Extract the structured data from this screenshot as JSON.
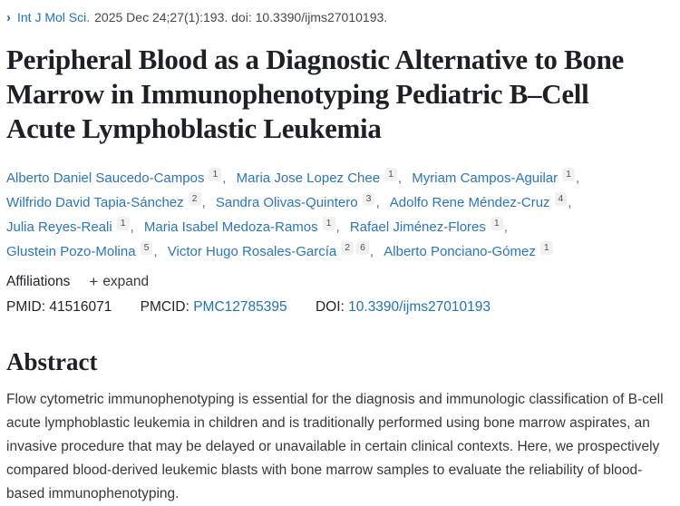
{
  "colors": {
    "link_blue": "#2173b6",
    "title_dark": "#1d2025",
    "sup_chip_bg": "#f1f1f1"
  },
  "citation": {
    "chevron_icon": "›",
    "journal": "Int J Mol Sci.",
    "details": "2025 Dec 24;27(1):193. doi: 10.3390/ijms27010193."
  },
  "title": "Peripheral Blood as a Diagnostic Alternative to Bone Marrow in Immunophenotyping Pediatric B–Cell Acute Lymphoblastic Leukemia",
  "authors": {
    "separator": ",",
    "list": [
      {
        "name": "Alberto Daniel Saucedo-Campos",
        "sups": [
          "1"
        ]
      },
      {
        "name": "Maria Jose Lopez Chee",
        "sups": [
          "1"
        ]
      },
      {
        "name": "Myriam Campos-Aguilar",
        "sups": [
          "1"
        ]
      },
      {
        "name": "Wilfrido David Tapia-Sánchez",
        "sups": [
          "2"
        ]
      },
      {
        "name": "Sandra Olivas-Quintero",
        "sups": [
          "3"
        ]
      },
      {
        "name": "Adolfo Rene Méndez-Cruz",
        "sups": [
          "4"
        ]
      },
      {
        "name": "Julia Reyes-Reali",
        "sups": [
          "1"
        ]
      },
      {
        "name": "Maria Isabel Medoza-Ramos",
        "sups": [
          "1"
        ]
      },
      {
        "name": "Rafael Jiménez-Flores",
        "sups": [
          "1"
        ]
      },
      {
        "name": "Glustein Pozo-Molina",
        "sups": [
          "5"
        ]
      },
      {
        "name": "Victor Hugo Rosales-García",
        "sups": [
          "2",
          "6"
        ]
      },
      {
        "name": "Alberto Ponciano-Gómez",
        "sups": [
          "1"
        ]
      }
    ]
  },
  "affiliations": {
    "label": "Affiliations",
    "plus_icon": "+",
    "expand_label": "expand"
  },
  "ids": {
    "pmid_label": "PMID:",
    "pmid": "41516071",
    "pmcid_label": "PMCID:",
    "pmcid": "PMC12785395",
    "doi_label": "DOI:",
    "doi": "10.3390/ijms27010193"
  },
  "abstract": {
    "heading": "Abstract",
    "text": "Flow cytometric immunophenotyping is essential for the diagnosis and immunologic classification of B-cell acute lymphoblastic leukemia in children and is traditionally performed using bone marrow aspirates, an invasive procedure that may be delayed or unavailable in certain clinical contexts. Here, we prospectively compared blood-derived leukemic blasts with bone marrow samples to evaluate the reliability of blood-based immunophenotyping."
  }
}
